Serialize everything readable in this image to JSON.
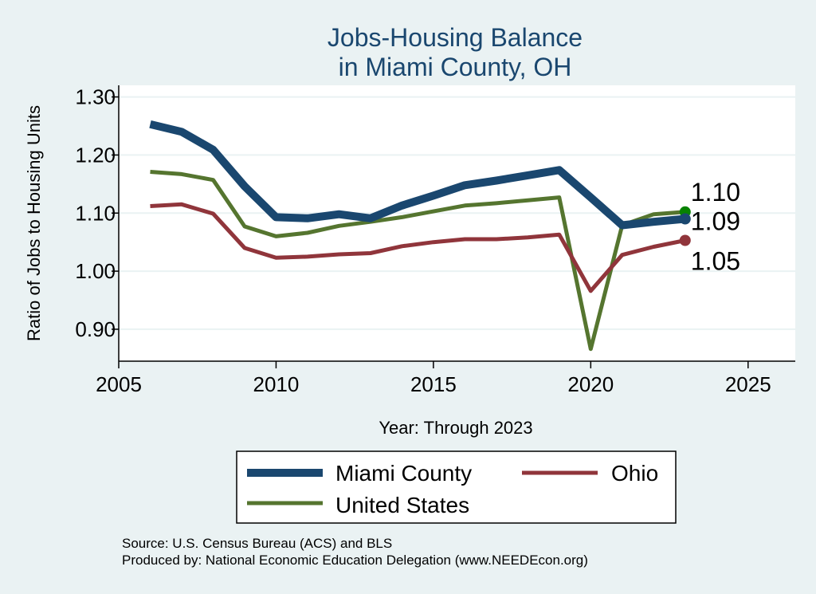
{
  "chart_data": {
    "type": "line",
    "title": [
      "Jobs-Housing Balance",
      "in Miami County, OH"
    ],
    "xlabel": "Year: Through 2023",
    "ylabel": "Ratio of Jobs to Housing Units",
    "xlim": [
      2005,
      2026.5
    ],
    "ylim": [
      0.845,
      1.32
    ],
    "xticks": [
      2005,
      2010,
      2015,
      2020,
      2025
    ],
    "yticks": [
      0.9,
      1.0,
      1.1,
      1.2,
      1.3
    ],
    "ytick_labels": [
      "0.90",
      "1.00",
      "1.10",
      "1.20",
      "1.30"
    ],
    "x": [
      2006,
      2007,
      2008,
      2009,
      2010,
      2011,
      2012,
      2013,
      2014,
      2015,
      2016,
      2017,
      2018,
      2019,
      2020,
      2021,
      2022,
      2023
    ],
    "series": [
      {
        "name": "Miami County",
        "color": "#1a476f",
        "width": 10,
        "values": [
          1.253,
          1.24,
          1.209,
          1.146,
          1.093,
          1.091,
          1.098,
          1.091,
          1.113,
          1.13,
          1.148,
          1.156,
          1.165,
          1.174,
          1.127,
          1.079,
          1.085,
          1.09
        ],
        "end_label": "1.09",
        "marker_color": "#1a476f"
      },
      {
        "name": "Ohio",
        "color": "#90353b",
        "width": 5,
        "values": [
          1.112,
          1.115,
          1.099,
          1.04,
          1.023,
          1.025,
          1.029,
          1.031,
          1.043,
          1.05,
          1.055,
          1.055,
          1.058,
          1.063,
          0.966,
          1.028,
          1.042,
          1.053
        ],
        "end_label": "1.05",
        "marker_color": "#90353b"
      },
      {
        "name": "United States",
        "color": "#55752f",
        "width": 5,
        "values": [
          1.171,
          1.167,
          1.157,
          1.077,
          1.06,
          1.066,
          1.078,
          1.085,
          1.093,
          1.103,
          1.113,
          1.117,
          1.122,
          1.127,
          0.866,
          1.079,
          1.098,
          1.102
        ],
        "end_label": "1.10",
        "marker_color": "#078200"
      }
    ],
    "legend": {
      "position": "bottom",
      "entries": [
        "Miami County",
        "Ohio",
        "United States"
      ]
    },
    "grid": true
  },
  "source": {
    "line1": "Source: U.S. Census Bureau (ACS) and BLS",
    "line2": "Produced by: National Economic Education Delegation (www.NEEDEcon.org)"
  },
  "colors": {
    "background": "#eaf2f3",
    "plot_background": "#ffffff",
    "grid": "#eaf2f3",
    "title": "#1a476f"
  }
}
